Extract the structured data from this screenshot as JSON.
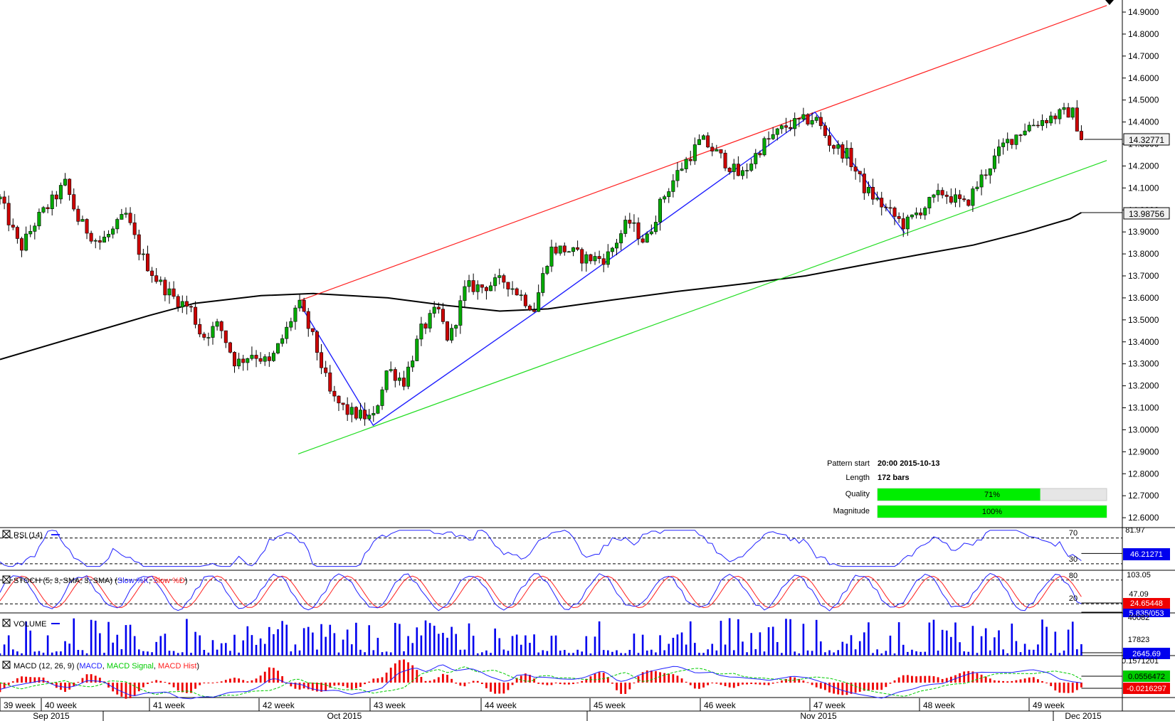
{
  "chart_data": {
    "type": "candlestick",
    "price_axis": {
      "ticks": [
        "14.9000",
        "14.8000",
        "14.7000",
        "14.6000",
        "14.5000",
        "14.4000",
        "14.3000",
        "14.2000",
        "14.1000",
        "14.0000",
        "13.9000",
        "13.8000",
        "13.7000",
        "13.6000",
        "13.5000",
        "13.4000",
        "13.3000",
        "13.2000",
        "13.1000",
        "13.0000",
        "12.9000",
        "12.8000",
        "12.7000",
        "12.6000"
      ],
      "range": [
        12.555,
        14.955
      ]
    },
    "last_price_label": "14.32771",
    "ma_label": "13.98756",
    "pattern_info": {
      "start_label": "Pattern start",
      "start_value": "20:00 2015-10-13",
      "length_label": "Length",
      "length_value": "172 bars",
      "quality_label": "Quality",
      "quality_value": "71%",
      "quality_fraction": 0.71,
      "magnitude_label": "Magnitude",
      "magnitude_value": "100%",
      "magnitude_fraction": 1.0
    },
    "channel_upper": [
      [
        0.2657,
        13.585
      ],
      [
        0.9861,
        14.93
      ]
    ],
    "channel_lower": [
      [
        0.2657,
        12.89
      ],
      [
        0.9861,
        14.225
      ]
    ],
    "zigzag": [
      [
        0.2657,
        13.585
      ],
      [
        0.3325,
        13.02
      ],
      [
        0.4759,
        13.53
      ],
      [
        0.7262,
        14.445
      ],
      [
        0.8061,
        13.895
      ]
    ],
    "ma_points": [
      [
        0.0,
        13.32
      ],
      [
        0.0665,
        13.42
      ],
      [
        0.133,
        13.52
      ],
      [
        0.1729,
        13.575
      ],
      [
        0.2326,
        13.61
      ],
      [
        0.2791,
        13.62
      ],
      [
        0.3455,
        13.6
      ],
      [
        0.3987,
        13.565
      ],
      [
        0.4452,
        13.54
      ],
      [
        0.4884,
        13.55
      ],
      [
        0.5449,
        13.59
      ],
      [
        0.6047,
        13.63
      ],
      [
        0.6645,
        13.665
      ],
      [
        0.7176,
        13.7
      ],
      [
        0.7641,
        13.745
      ],
      [
        0.8173,
        13.795
      ],
      [
        0.8671,
        13.84
      ],
      [
        0.9136,
        13.9
      ],
      [
        0.9535,
        13.96
      ],
      [
        0.9635,
        13.988
      ]
    ],
    "indicators": {
      "rsi": {
        "label": "RSI (14)",
        "levels": [
          "70",
          "30"
        ],
        "top_value": "81.97",
        "value": "46.21271"
      },
      "stoch": {
        "label": "STOCH (5, 3, SMA, 3, SMA)",
        "slow_k": "Slow %K",
        "slow_d": "Slow %D",
        "levels": [
          "80",
          "20"
        ],
        "top_value": "103.05",
        "mid_value": "47.09",
        "value_k": "24.65448",
        "value_d": "5.835/053"
      },
      "volume": {
        "label": "VOLUME",
        "top_value": "40082",
        "mid_value": "17823",
        "value": "2645.69"
      },
      "macd": {
        "label": "MACD (12, 26, 9)",
        "macd": "MACD",
        "signal": "MACD Signal",
        "hist": "MACD Hist",
        "top_value": "0.1571201",
        "value_macd": "0.0556472",
        "value_hist": "-0.0216297"
      }
    },
    "time_axis": {
      "weeks": [
        "39 week",
        "40 week",
        "41 week",
        "42 week",
        "43 week",
        "44 week",
        "45 week",
        "46 week",
        "47 week",
        "48 week",
        "49 week"
      ],
      "months": [
        "Sep 2015",
        "Oct 2015",
        "Nov 2015",
        "Dec 2015"
      ]
    },
    "colors": {
      "up": "#00aa00",
      "down": "#cc0000",
      "upper_line": "#ff2020",
      "lower_line": "#22dd22",
      "zigzag": "#2020ff",
      "ma": "#000000",
      "bar_fill": "#00ee00",
      "rsi": "#2020ff",
      "k": "#2020ff",
      "d": "#ff2020",
      "vol": "#0000ee",
      "value_badge": "#0000ee",
      "red_badge": "#ee0000",
      "green_badge": "#00cc00"
    }
  }
}
